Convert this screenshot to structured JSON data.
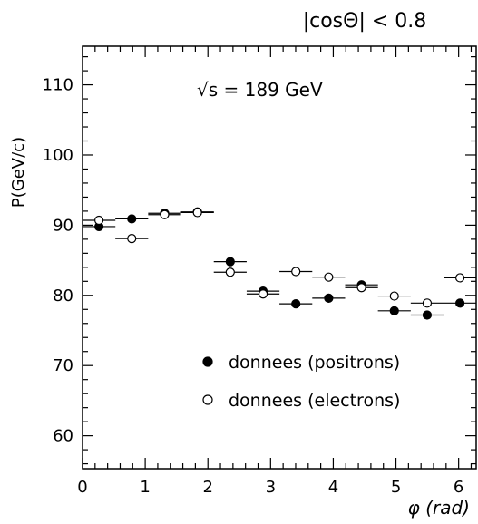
{
  "chart_data": {
    "type": "scatter",
    "title": "|cosΘ| < 0.8",
    "annotation": "√s = 189 GeV",
    "xlabel": "φ (rad)",
    "ylabel": "P(GeV/c)",
    "xlim": [
      0,
      6.28
    ],
    "ylim": [
      55.3,
      115.5
    ],
    "x_ticks": [
      0,
      1,
      2,
      3,
      4,
      5,
      6
    ],
    "y_ticks": [
      60,
      70,
      80,
      90,
      100,
      110
    ],
    "x_tick_labels": [
      "0",
      "1",
      "2",
      "3",
      "4",
      "5",
      "6"
    ],
    "y_tick_labels": [
      "60",
      "70",
      "80",
      "90",
      "100",
      "110"
    ],
    "grid": false,
    "legend_position": "bottom-right",
    "series": [
      {
        "name": "donnees (positrons)",
        "marker": "filled-circle",
        "x": [
          0.262,
          0.785,
          1.309,
          1.833,
          2.356,
          2.88,
          3.403,
          3.927,
          4.451,
          4.974,
          5.498,
          6.021
        ],
        "y": [
          89.8,
          90.9,
          91.7,
          91.9,
          84.8,
          80.6,
          78.8,
          79.6,
          81.5,
          77.8,
          77.2,
          78.9
        ],
        "x_err": 0.262
      },
      {
        "name": "donnees (electrons)",
        "marker": "open-circle",
        "x": [
          0.262,
          0.785,
          1.309,
          1.833,
          2.356,
          2.88,
          3.403,
          3.927,
          4.451,
          4.974,
          5.498,
          6.021
        ],
        "y": [
          90.7,
          88.1,
          91.5,
          91.8,
          83.3,
          80.2,
          83.4,
          82.6,
          81.1,
          79.9,
          78.9,
          82.5
        ],
        "x_err": 0.262
      }
    ]
  }
}
